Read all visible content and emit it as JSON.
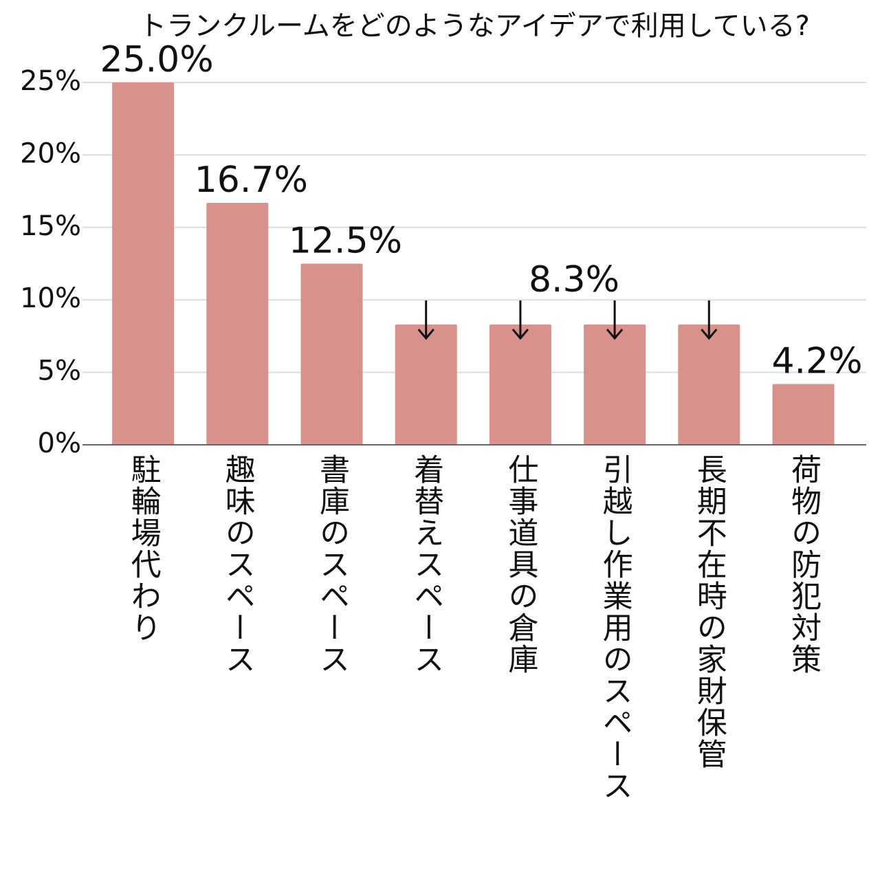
{
  "chart_data": {
    "type": "bar",
    "title": "トランクルームをどのようなアイデアで利用している?",
    "categories": [
      "駐輪場代わり",
      "趣味のスペース",
      "書庫のスペース",
      "着替えスペース",
      "仕事道具の倉庫",
      "引越し作業用のスペース",
      "長期不在時の家財保管",
      "荷物の防犯対策"
    ],
    "values": [
      25.0,
      16.7,
      12.5,
      8.3,
      8.3,
      8.3,
      8.3,
      4.2
    ],
    "value_labels": [
      "25.0%",
      "16.7%",
      "12.5%",
      null,
      null,
      null,
      null,
      "4.2%"
    ],
    "annotations": [
      {
        "text": "8.3%"
      }
    ],
    "color": "#d9918b",
    "ylim": [
      0,
      25
    ],
    "yticks": [
      {
        "value": 0,
        "label": "0%"
      },
      {
        "value": 5,
        "label": "5%"
      },
      {
        "value": 10,
        "label": "10%"
      },
      {
        "value": 15,
        "label": "15%"
      },
      {
        "value": 20,
        "label": "20%"
      },
      {
        "value": 25,
        "label": "25%"
      }
    ],
    "grid": true
  }
}
